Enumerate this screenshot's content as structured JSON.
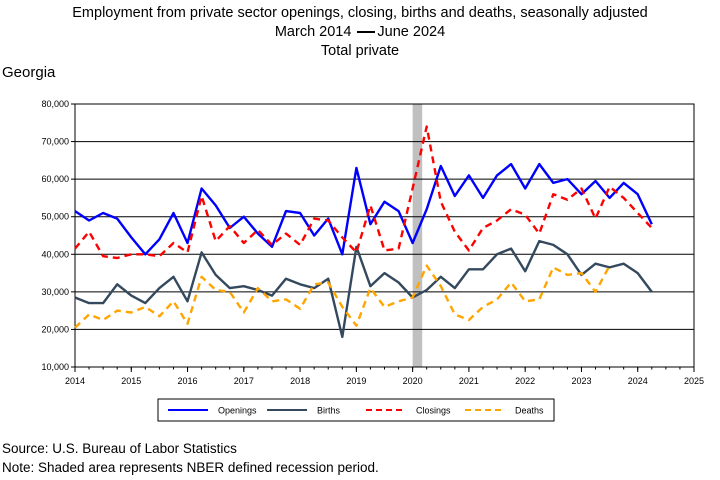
{
  "chart_data": {
    "type": "line",
    "title_lines": [
      "Employment from private sector openings, closing, births and deaths, seasonally adjusted",
      "March 2014 —June 2024",
      "Total private"
    ],
    "title_line2_start": "March 2014",
    "title_line2_end": "June 2024",
    "state_label": "Georgia",
    "ylim": [
      10000,
      80000
    ],
    "yticks": [
      "10,000",
      "20,000",
      "30,000",
      "40,000",
      "50,000",
      "60,000",
      "70,000",
      "80,000"
    ],
    "ytick_values": [
      10000,
      20000,
      30000,
      40000,
      50000,
      60000,
      70000,
      80000
    ],
    "xlim": [
      2014,
      2025
    ],
    "xticks": [
      "2014",
      "2015",
      "2016",
      "2017",
      "2018",
      "2019",
      "2020",
      "2021",
      "2022",
      "2023",
      "2024",
      "2025"
    ],
    "xtick_values": [
      2014,
      2015,
      2016,
      2017,
      2018,
      2019,
      2020,
      2021,
      2022,
      2023,
      2024,
      2025
    ],
    "grid": "horizontal",
    "legend_position": "bottom",
    "recession": {
      "start": 2020.0,
      "end": 2020.17,
      "color": "#c0c0c0"
    },
    "x": [
      2014.0,
      2014.25,
      2014.5,
      2014.75,
      2015.0,
      2015.25,
      2015.5,
      2015.75,
      2016.0,
      2016.25,
      2016.5,
      2016.75,
      2017.0,
      2017.25,
      2017.5,
      2017.75,
      2018.0,
      2018.25,
      2018.5,
      2018.75,
      2019.0,
      2019.25,
      2019.5,
      2019.75,
      2020.0,
      2020.25,
      2020.5,
      2020.75,
      2021.0,
      2021.25,
      2021.5,
      2021.75,
      2022.0,
      2022.25,
      2022.5,
      2022.75,
      2023.0,
      2023.25,
      2023.5,
      2023.75,
      2024.0,
      2024.25
    ],
    "series": [
      {
        "name": "Openings",
        "color": "#0000ff",
        "dash": "solid",
        "width": 2.4,
        "values": [
          51500,
          49000,
          51000,
          49500,
          44500,
          40000,
          44000,
          51000,
          43000,
          57500,
          53000,
          47000,
          50000,
          45500,
          42000,
          51500,
          51000,
          45000,
          49500,
          40000,
          63000,
          48000,
          54000,
          51500,
          43000,
          52000,
          63500,
          55500,
          61000,
          55000,
          61000,
          64000,
          57500,
          64000,
          59000,
          60000,
          56000,
          59500,
          55000,
          59000,
          56000,
          48000
        ]
      },
      {
        "name": "Births",
        "color": "#34495e",
        "dash": "solid",
        "width": 2.4,
        "values": [
          28500,
          27000,
          27000,
          32000,
          29000,
          27000,
          31000,
          34000,
          27500,
          40500,
          34500,
          31000,
          31500,
          30500,
          29000,
          33500,
          32000,
          31000,
          33500,
          18000,
          42000,
          31500,
          35000,
          32500,
          28500,
          30500,
          34000,
          31000,
          36000,
          36000,
          40000,
          41500,
          35500,
          43500,
          42500,
          40000,
          34500,
          37500,
          36500,
          37500,
          35000,
          30000
        ]
      },
      {
        "name": "Closings",
        "color": "#ff0000",
        "dash": "7,5",
        "width": 2.4,
        "values": [
          41500,
          46000,
          39500,
          39000,
          40000,
          40000,
          39500,
          43000,
          40500,
          55500,
          43500,
          47500,
          43000,
          46500,
          42500,
          45500,
          42500,
          49500,
          49000,
          44500,
          40500,
          53000,
          41000,
          41500,
          57500,
          74000,
          54000,
          46000,
          41000,
          47000,
          49000,
          52000,
          50500,
          45500,
          56000,
          54500,
          57500,
          49500,
          58000,
          55000,
          51000,
          47000
        ]
      },
      {
        "name": "Deaths",
        "color": "#ffa500",
        "dash": "7,5",
        "width": 2.4,
        "values": [
          20500,
          24000,
          22500,
          25000,
          24500,
          26000,
          23500,
          27500,
          21500,
          34000,
          30500,
          30000,
          24500,
          31000,
          27500,
          28000,
          25500,
          32000,
          32500,
          26000,
          21000,
          31000,
          26000,
          27500,
          28500,
          37000,
          31500,
          24000,
          22500,
          26000,
          28000,
          32500,
          27500,
          28000,
          36500,
          34500,
          35000,
          30000,
          37000,
          null,
          null,
          null
        ]
      }
    ],
    "source_text": "Source: U.S. Bureau of Labor Statistics",
    "note_text": "Note: Shaded area represents NBER defined recession period."
  }
}
